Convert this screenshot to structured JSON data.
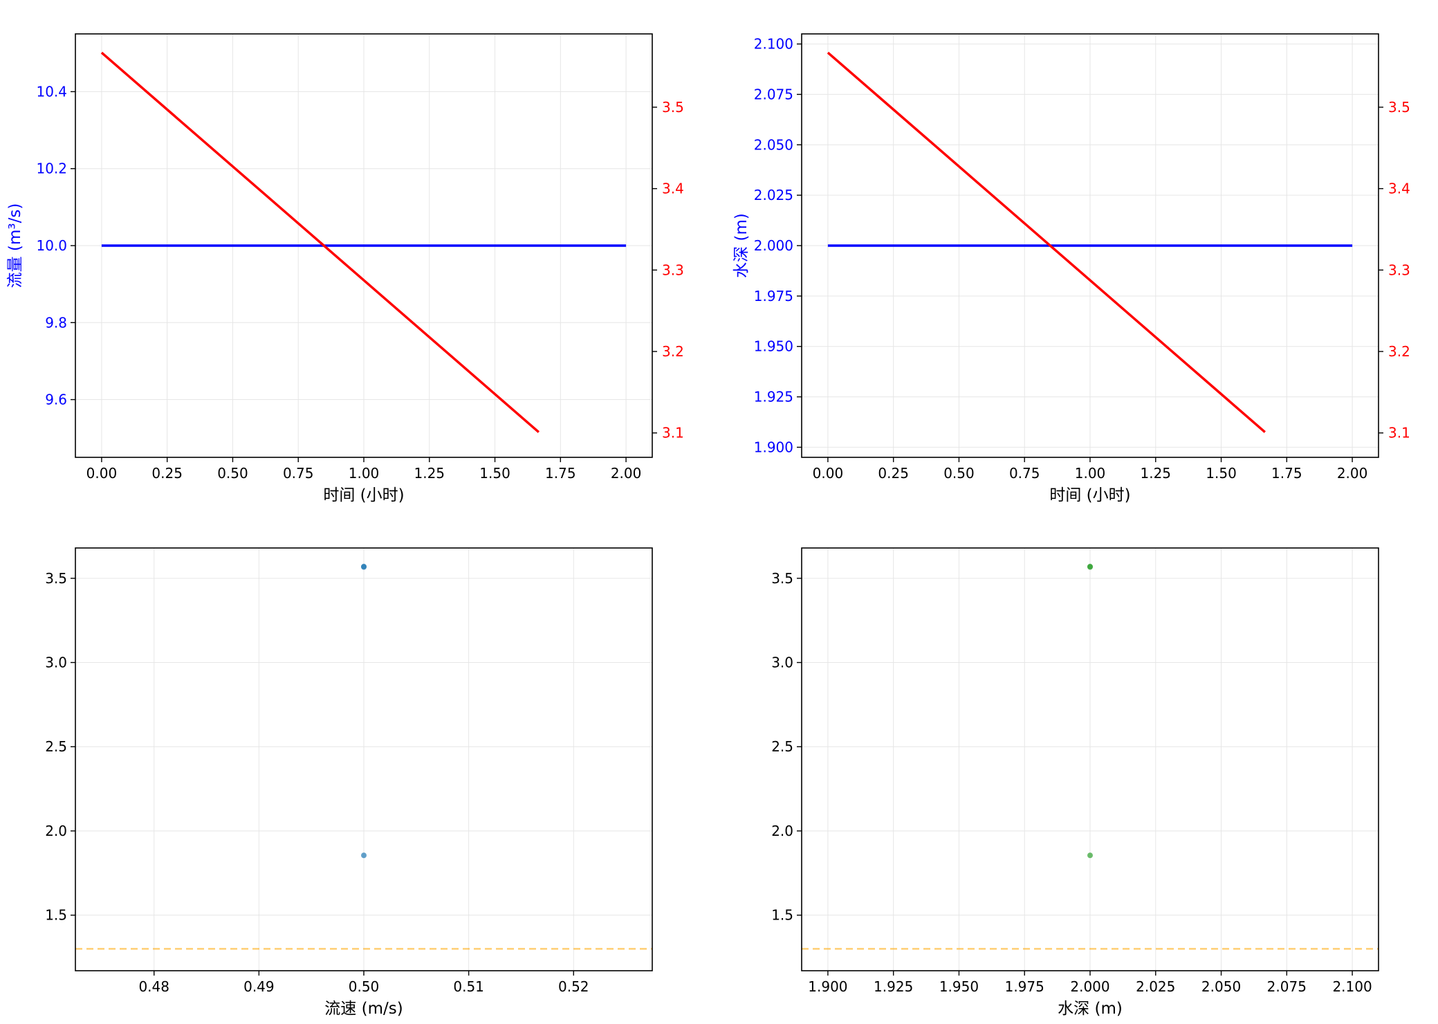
{
  "colors": {
    "left_axis": "#0000ff",
    "right_axis": "#ff0000",
    "line_primary": "#0000ff",
    "line_secondary": "#ff0000",
    "scatter_velocity": "#1f77b4",
    "scatter_depth": "#2ca02c",
    "reference_line": "#ffa500",
    "grid": "#e6e6e6"
  },
  "chart_data": [
    {
      "type": "line",
      "title": "",
      "xlabel": "时间 (小时)",
      "ylabel": "流量 (m³/s)",
      "y2label": "",
      "xlim": [
        -0.1,
        2.1
      ],
      "ylim": [
        9.45,
        10.55
      ],
      "y2lim": [
        3.07,
        3.59
      ],
      "xticks": [
        "0.00",
        "0.25",
        "0.50",
        "0.75",
        "1.00",
        "1.25",
        "1.50",
        "1.75",
        "2.00"
      ],
      "yticks": [
        "9.6",
        "9.8",
        "10.0",
        "10.2",
        "10.4"
      ],
      "y2ticks": [
        "3.1",
        "3.2",
        "3.3",
        "3.4",
        "3.5"
      ],
      "grid": true,
      "series": [
        {
          "axis": "left",
          "color": "blue",
          "x": [
            0,
            2
          ],
          "y": [
            10.0,
            10.0
          ]
        },
        {
          "axis": "right",
          "color": "red",
          "x": [
            0,
            1.667
          ],
          "y": [
            3.567,
            3.101
          ]
        }
      ]
    },
    {
      "type": "line",
      "title": "",
      "xlabel": "时间 (小时)",
      "ylabel": "水深 (m)",
      "y2label": "",
      "xlim": [
        -0.1,
        2.1
      ],
      "ylim": [
        1.895,
        2.105
      ],
      "y2lim": [
        3.07,
        3.59
      ],
      "xticks": [
        "0.00",
        "0.25",
        "0.50",
        "0.75",
        "1.00",
        "1.25",
        "1.50",
        "1.75",
        "2.00"
      ],
      "yticks": [
        "1.900",
        "1.925",
        "1.950",
        "1.975",
        "2.000",
        "2.025",
        "2.050",
        "2.075",
        "2.100"
      ],
      "y2ticks": [
        "3.1",
        "3.2",
        "3.3",
        "3.4",
        "3.5"
      ],
      "grid": true,
      "series": [
        {
          "axis": "left",
          "color": "blue",
          "x": [
            0,
            2
          ],
          "y": [
            2.0,
            2.0
          ]
        },
        {
          "axis": "right",
          "color": "red",
          "x": [
            0,
            1.667
          ],
          "y": [
            3.567,
            3.101
          ]
        }
      ]
    },
    {
      "type": "scatter",
      "title": "",
      "xlabel": "流速 (m/s)",
      "ylabel": "",
      "xlim": [
        0.4725,
        0.5275
      ],
      "ylim": [
        1.17,
        3.68
      ],
      "xticks": [
        "0.48",
        "0.49",
        "0.50",
        "0.51",
        "0.52"
      ],
      "yticks": [
        "1.5",
        "2.0",
        "2.5",
        "3.0",
        "3.5"
      ],
      "grid": true,
      "points": [
        {
          "x": 0.5,
          "y": 3.57
        },
        {
          "x": 0.5,
          "y": 3.567
        },
        {
          "x": 0.5,
          "y": 1.855
        }
      ],
      "reference_line": {
        "y": 1.3,
        "style": "dashed"
      }
    },
    {
      "type": "scatter",
      "title": "",
      "xlabel": "水深 (m)",
      "ylabel": "",
      "xlim": [
        1.89,
        2.11
      ],
      "ylim": [
        1.17,
        3.68
      ],
      "xticks": [
        "1.900",
        "1.925",
        "1.950",
        "1.975",
        "2.000",
        "2.025",
        "2.050",
        "2.075",
        "2.100"
      ],
      "yticks": [
        "1.5",
        "2.0",
        "2.5",
        "3.0",
        "3.5"
      ],
      "grid": true,
      "points": [
        {
          "x": 2.0,
          "y": 3.57
        },
        {
          "x": 2.0,
          "y": 3.567
        },
        {
          "x": 2.0,
          "y": 1.855
        }
      ],
      "reference_line": {
        "y": 1.3,
        "style": "dashed"
      }
    }
  ]
}
